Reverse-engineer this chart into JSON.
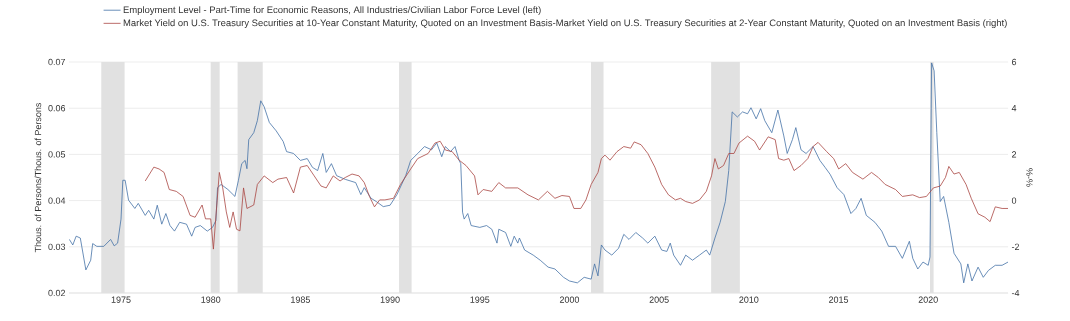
{
  "chart_data": {
    "type": "line",
    "ylabel": "Thous. of Persons/Thous. of Persons",
    "y2label": "%-%",
    "xlim": [
      1972.1,
      2024.45
    ],
    "xticks": [
      1975,
      1980,
      1985,
      1990,
      1995,
      2000,
      2005,
      2010,
      2015,
      2020
    ],
    "ylim": [
      0.02,
      0.07
    ],
    "yticks": [
      0.02,
      0.03,
      0.04,
      0.05,
      0.06,
      0.07
    ],
    "y2lim": [
      -4,
      6
    ],
    "y2ticks": [
      -4,
      -2,
      0,
      2,
      4,
      6
    ],
    "grid": "y",
    "legend": "top",
    "bands": [
      {
        "axis": "x",
        "from": 1973.9,
        "to": 1975.2,
        "color": "#e1e1e1"
      },
      {
        "axis": "x",
        "from": 1980.0,
        "to": 1980.5,
        "color": "#e1e1e1"
      },
      {
        "axis": "x",
        "from": 1981.5,
        "to": 1982.9,
        "color": "#e1e1e1"
      },
      {
        "axis": "x",
        "from": 1990.5,
        "to": 1991.2,
        "color": "#e1e1e1"
      },
      {
        "axis": "x",
        "from": 2001.2,
        "to": 2001.9,
        "color": "#e1e1e1"
      },
      {
        "axis": "x",
        "from": 2007.9,
        "to": 2009.5,
        "color": "#e1e1e1"
      },
      {
        "axis": "x",
        "from": 2020.1,
        "to": 2020.3,
        "color": "#e1e1e1"
      }
    ],
    "series": [
      {
        "name": "Employment Level - Part-Time for Economic Reasons, All Industries/Civilian Labor Force Level (left)",
        "color": "#4572a7",
        "axis": "y",
        "x": [
          1972.12,
          1972.31,
          1972.5,
          1972.73,
          1973.04,
          1973.31,
          1973.42,
          1973.65,
          1974.04,
          1974.42,
          1974.62,
          1974.81,
          1975.0,
          1975.1,
          1975.23,
          1975.42,
          1975.77,
          1975.96,
          1976.35,
          1976.54,
          1976.83,
          1977.02,
          1977.27,
          1977.5,
          1977.73,
          1977.98,
          1978.27,
          1978.65,
          1978.94,
          1979.13,
          1979.42,
          1979.81,
          1980.1,
          1980.29,
          1980.38,
          1980.58,
          1980.96,
          1981.35,
          1981.54,
          1981.73,
          1981.92,
          1982.02,
          1982.12,
          1982.4,
          1982.6,
          1982.79,
          1982.98,
          1983.27,
          1983.65,
          1984.04,
          1984.23,
          1984.62,
          1985.0,
          1985.38,
          1985.67,
          1985.96,
          1986.25,
          1986.44,
          1986.73,
          1987.02,
          1987.5,
          1988.08,
          1988.37,
          1988.56,
          1988.94,
          1989.23,
          1989.62,
          1990.0,
          1990.38,
          1990.87,
          1991.15,
          1991.54,
          1991.92,
          1992.31,
          1992.6,
          1992.88,
          1993.08,
          1993.37,
          1993.62,
          1993.85,
          1993.94,
          1994.04,
          1994.13,
          1994.33,
          1994.52,
          1995.0,
          1995.38,
          1995.67,
          1995.96,
          1996.06,
          1996.44,
          1996.73,
          1996.92,
          1997.12,
          1997.21,
          1997.5,
          1997.98,
          1998.37,
          1998.81,
          1999.19,
          1999.67,
          2000.0,
          2000.44,
          2000.82,
          2001.21,
          2001.4,
          2001.59,
          2001.78,
          2001.98,
          2002.36,
          2002.74,
          2003.03,
          2003.32,
          2003.7,
          2004.08,
          2004.37,
          2004.76,
          2005.14,
          2005.43,
          2005.62,
          2005.81,
          2006.19,
          2006.48,
          2006.86,
          2007.25,
          2007.63,
          2007.82,
          2008.11,
          2008.4,
          2008.69,
          2008.88,
          2009.07,
          2009.36,
          2009.65,
          2009.93,
          2010.12,
          2010.41,
          2010.66,
          2010.89,
          2011.28,
          2011.62,
          2011.95,
          2012.14,
          2012.43,
          2012.62,
          2012.91,
          2013.19,
          2013.58,
          2013.96,
          2014.25,
          2014.53,
          2014.92,
          2015.3,
          2015.69,
          2015.97,
          2016.26,
          2016.55,
          2017.03,
          2017.41,
          2017.79,
          2018.18,
          2018.56,
          2018.95,
          2019.14,
          2019.42,
          2019.71,
          2020.0,
          2020.1,
          2020.19,
          2020.33,
          2020.48,
          2020.67,
          2020.86,
          2021.15,
          2021.44,
          2021.82,
          2021.98,
          2022.21,
          2022.44,
          2022.78,
          2023.07,
          2023.36,
          2023.74,
          2024.12,
          2024.45
        ],
        "values": [
          0.0316,
          0.0304,
          0.0323,
          0.0319,
          0.025,
          0.0271,
          0.0307,
          0.0301,
          0.0301,
          0.0316,
          0.0302,
          0.0308,
          0.036,
          0.0444,
          0.0444,
          0.0401,
          0.0383,
          0.0394,
          0.0368,
          0.0379,
          0.036,
          0.039,
          0.0349,
          0.0372,
          0.0346,
          0.0334,
          0.0353,
          0.0349,
          0.0323,
          0.0342,
          0.0346,
          0.0334,
          0.0342,
          0.0357,
          0.0428,
          0.0435,
          0.0424,
          0.0409,
          0.0443,
          0.048,
          0.0487,
          0.0469,
          0.0532,
          0.0547,
          0.0573,
          0.0616,
          0.0603,
          0.0569,
          0.0551,
          0.0528,
          0.0506,
          0.0502,
          0.0487,
          0.0491,
          0.0472,
          0.0465,
          0.0502,
          0.0461,
          0.048,
          0.0454,
          0.0446,
          0.0439,
          0.0413,
          0.0428,
          0.0405,
          0.0398,
          0.0387,
          0.039,
          0.0413,
          0.0454,
          0.0487,
          0.0502,
          0.0517,
          0.051,
          0.0525,
          0.0495,
          0.0517,
          0.0506,
          0.0517,
          0.0487,
          0.048,
          0.0375,
          0.036,
          0.0372,
          0.0346,
          0.0342,
          0.0346,
          0.0338,
          0.0308,
          0.0338,
          0.0331,
          0.0301,
          0.0323,
          0.0308,
          0.0319,
          0.0293,
          0.0282,
          0.0271,
          0.0256,
          0.0252,
          0.0234,
          0.0226,
          0.0222,
          0.0234,
          0.023,
          0.0263,
          0.0237,
          0.0304,
          0.0293,
          0.0282,
          0.0297,
          0.0327,
          0.0316,
          0.0331,
          0.0319,
          0.0308,
          0.0323,
          0.0293,
          0.029,
          0.0308,
          0.0282,
          0.026,
          0.0282,
          0.0271,
          0.0282,
          0.0293,
          0.0282,
          0.0319,
          0.0353,
          0.0398,
          0.0465,
          0.0592,
          0.0581,
          0.0592,
          0.0588,
          0.0601,
          0.0577,
          0.0599,
          0.0573,
          0.0547,
          0.0596,
          0.054,
          0.0502,
          0.0532,
          0.0558,
          0.051,
          0.0502,
          0.0517,
          0.0487,
          0.0472,
          0.0457,
          0.0428,
          0.0413,
          0.0372,
          0.0383,
          0.0405,
          0.0368,
          0.0353,
          0.0334,
          0.0301,
          0.0301,
          0.0275,
          0.0312,
          0.0275,
          0.0252,
          0.0267,
          0.026,
          0.0278,
          0.0698,
          0.0681,
          0.0547,
          0.0398,
          0.0409,
          0.0353,
          0.0286,
          0.0263,
          0.0222,
          0.0263,
          0.0226,
          0.0256,
          0.0234,
          0.0249,
          0.026,
          0.026,
          0.0267
        ]
      },
      {
        "name": "Market Yield on U.S. Treasury Securities at 10-Year Constant Maturity, Quoted on an Investment Basis-Market Yield on U.S. Treasury Securities at 2-Year Constant Maturity, Quoted on an Investment Basis (right)",
        "color": "#aa4643",
        "axis": "y2",
        "x": [
          1976.35,
          1976.83,
          1977.12,
          1977.4,
          1977.69,
          1978.08,
          1978.46,
          1978.85,
          1979.13,
          1979.52,
          1979.71,
          1980.0,
          1980.15,
          1980.48,
          1980.67,
          1980.87,
          1981.06,
          1981.25,
          1981.44,
          1981.63,
          1981.83,
          1982.02,
          1982.4,
          1982.6,
          1982.98,
          1983.46,
          1983.75,
          1984.23,
          1984.62,
          1985.0,
          1985.38,
          1985.77,
          1986.15,
          1986.44,
          1986.83,
          1987.21,
          1987.5,
          1987.88,
          1988.27,
          1988.56,
          1988.85,
          1989.13,
          1989.42,
          1989.71,
          1990.19,
          1990.58,
          1991.15,
          1991.54,
          1992.12,
          1992.5,
          1992.79,
          1993.08,
          1993.46,
          1993.85,
          1994.23,
          1994.71,
          1994.9,
          1995.19,
          1995.67,
          1996.06,
          1996.44,
          1997.12,
          1997.69,
          1998.27,
          1998.77,
          1999.19,
          1999.58,
          2000.0,
          2000.25,
          2000.63,
          2000.92,
          2001.21,
          2001.59,
          2001.78,
          2001.98,
          2002.26,
          2002.65,
          2003.03,
          2003.41,
          2003.61,
          2003.99,
          2004.37,
          2004.76,
          2005.14,
          2005.52,
          2005.91,
          2006.19,
          2006.48,
          2006.86,
          2007.25,
          2007.63,
          2007.92,
          2008.11,
          2008.3,
          2008.59,
          2008.88,
          2009.17,
          2009.45,
          2009.93,
          2010.32,
          2010.6,
          2011.08,
          2011.47,
          2011.66,
          2011.95,
          2012.23,
          2012.52,
          2012.91,
          2013.29,
          2013.58,
          2013.86,
          2014.34,
          2014.73,
          2015.01,
          2015.4,
          2015.78,
          2016.36,
          2016.84,
          2017.22,
          2017.6,
          2018.18,
          2018.56,
          2019.14,
          2019.52,
          2019.9,
          2020.29,
          2020.67,
          2020.96,
          2021.15,
          2021.44,
          2021.73,
          2022.11,
          2022.4,
          2022.78,
          2023.16,
          2023.45,
          2023.74,
          2024.12,
          2024.45
        ],
        "values": [
          0.85,
          1.45,
          1.37,
          1.22,
          0.48,
          0.4,
          0.18,
          -0.64,
          -0.72,
          -0.19,
          -0.79,
          -0.79,
          -2.1,
          1.22,
          0.55,
          -0.49,
          -1.16,
          -0.49,
          -1.24,
          -1.31,
          0.55,
          -0.34,
          -0.19,
          0.7,
          1.07,
          0.78,
          0.93,
          1.0,
          0.33,
          1.45,
          1.52,
          1.07,
          0.63,
          0.55,
          1.07,
          0.85,
          1.0,
          1.15,
          1.07,
          0.78,
          0.18,
          -0.27,
          0.03,
          0.03,
          0.1,
          0.7,
          1.37,
          1.82,
          2.04,
          2.49,
          2.57,
          2.19,
          2.12,
          1.75,
          1.52,
          1.07,
          0.25,
          0.48,
          0.4,
          0.78,
          0.55,
          0.55,
          0.25,
          0.03,
          0.4,
          0.1,
          0.22,
          0.18,
          -0.34,
          -0.34,
          0.03,
          0.7,
          1.22,
          1.82,
          1.97,
          1.75,
          2.12,
          2.34,
          2.27,
          2.54,
          2.42,
          2.04,
          1.45,
          0.7,
          0.25,
          0.03,
          0.1,
          -0.04,
          -0.12,
          0.03,
          0.4,
          1.07,
          1.82,
          1.37,
          1.52,
          2.04,
          2.04,
          2.49,
          2.79,
          2.57,
          2.19,
          2.76,
          2.64,
          1.82,
          1.75,
          1.82,
          1.3,
          1.52,
          1.82,
          2.34,
          2.52,
          2.12,
          1.82,
          1.37,
          1.6,
          1.22,
          0.93,
          1.22,
          1.0,
          0.7,
          0.48,
          0.18,
          0.25,
          0.13,
          0.18,
          0.55,
          0.63,
          1.0,
          1.48,
          1.15,
          1.22,
          0.7,
          0.1,
          -0.57,
          -0.72,
          -0.91,
          -0.27,
          -0.34,
          -0.34
        ]
      }
    ]
  }
}
